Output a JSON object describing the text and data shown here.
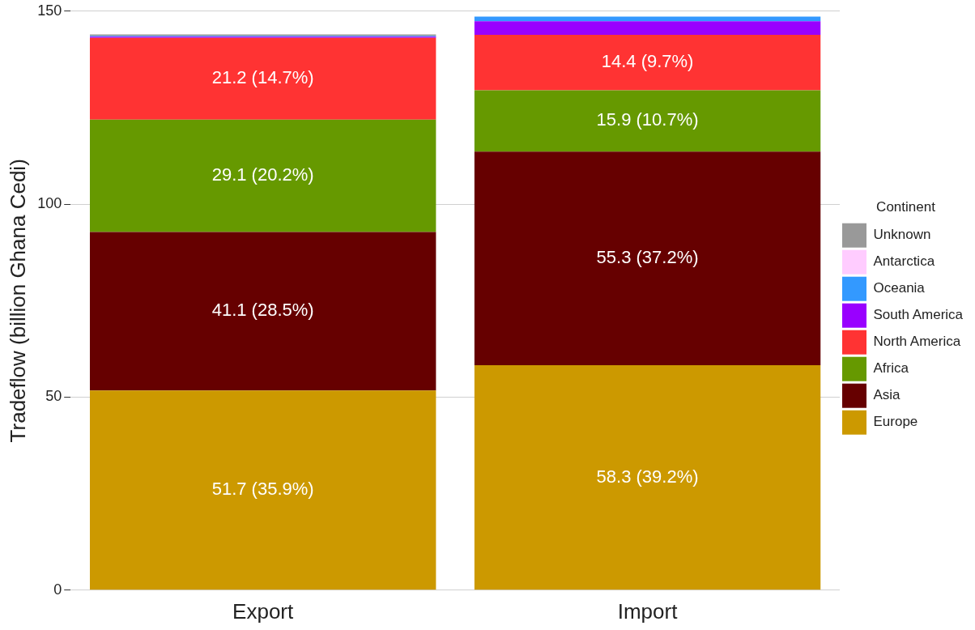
{
  "chart_data": {
    "type": "bar",
    "stacked": true,
    "ylabel": "Tradeflow (billion Ghana Cedi)",
    "legend_title": "Continent",
    "legend": "right",
    "grid": "y",
    "categories": [
      "Export",
      "Import"
    ],
    "ylim": [
      0,
      150
    ],
    "yticks": [
      0,
      50,
      100,
      150
    ],
    "series": [
      {
        "name": "Europe",
        "color": "#cc9900",
        "values": [
          51.7,
          58.3
        ],
        "value_labels": [
          "51.7 (35.9%)",
          "58.3 (39.2%)"
        ]
      },
      {
        "name": "Asia",
        "color": "#660000",
        "values": [
          41.1,
          55.3
        ],
        "value_labels": [
          "41.1 (28.5%)",
          "55.3 (37.2%)"
        ]
      },
      {
        "name": "Africa",
        "color": "#669900",
        "values": [
          29.1,
          15.9
        ],
        "value_labels": [
          "29.1 (20.2%)",
          "15.9 (10.7%)"
        ]
      },
      {
        "name": "North America",
        "color": "#ff3333",
        "values": [
          21.2,
          14.4
        ],
        "value_labels": [
          "21.2 (14.7%)",
          "14.4 (9.7%)"
        ]
      },
      {
        "name": "South America",
        "color": "#9900ff",
        "values": [
          0.3,
          3.5
        ]
      },
      {
        "name": "Oceania",
        "color": "#3399ff",
        "values": [
          0.2,
          1.2
        ]
      },
      {
        "name": "Antarctica",
        "color": "#ffccff",
        "values": [
          0,
          0
        ]
      },
      {
        "name": "Unknown",
        "color": "#999999",
        "values": [
          0.4,
          null
        ]
      }
    ]
  }
}
